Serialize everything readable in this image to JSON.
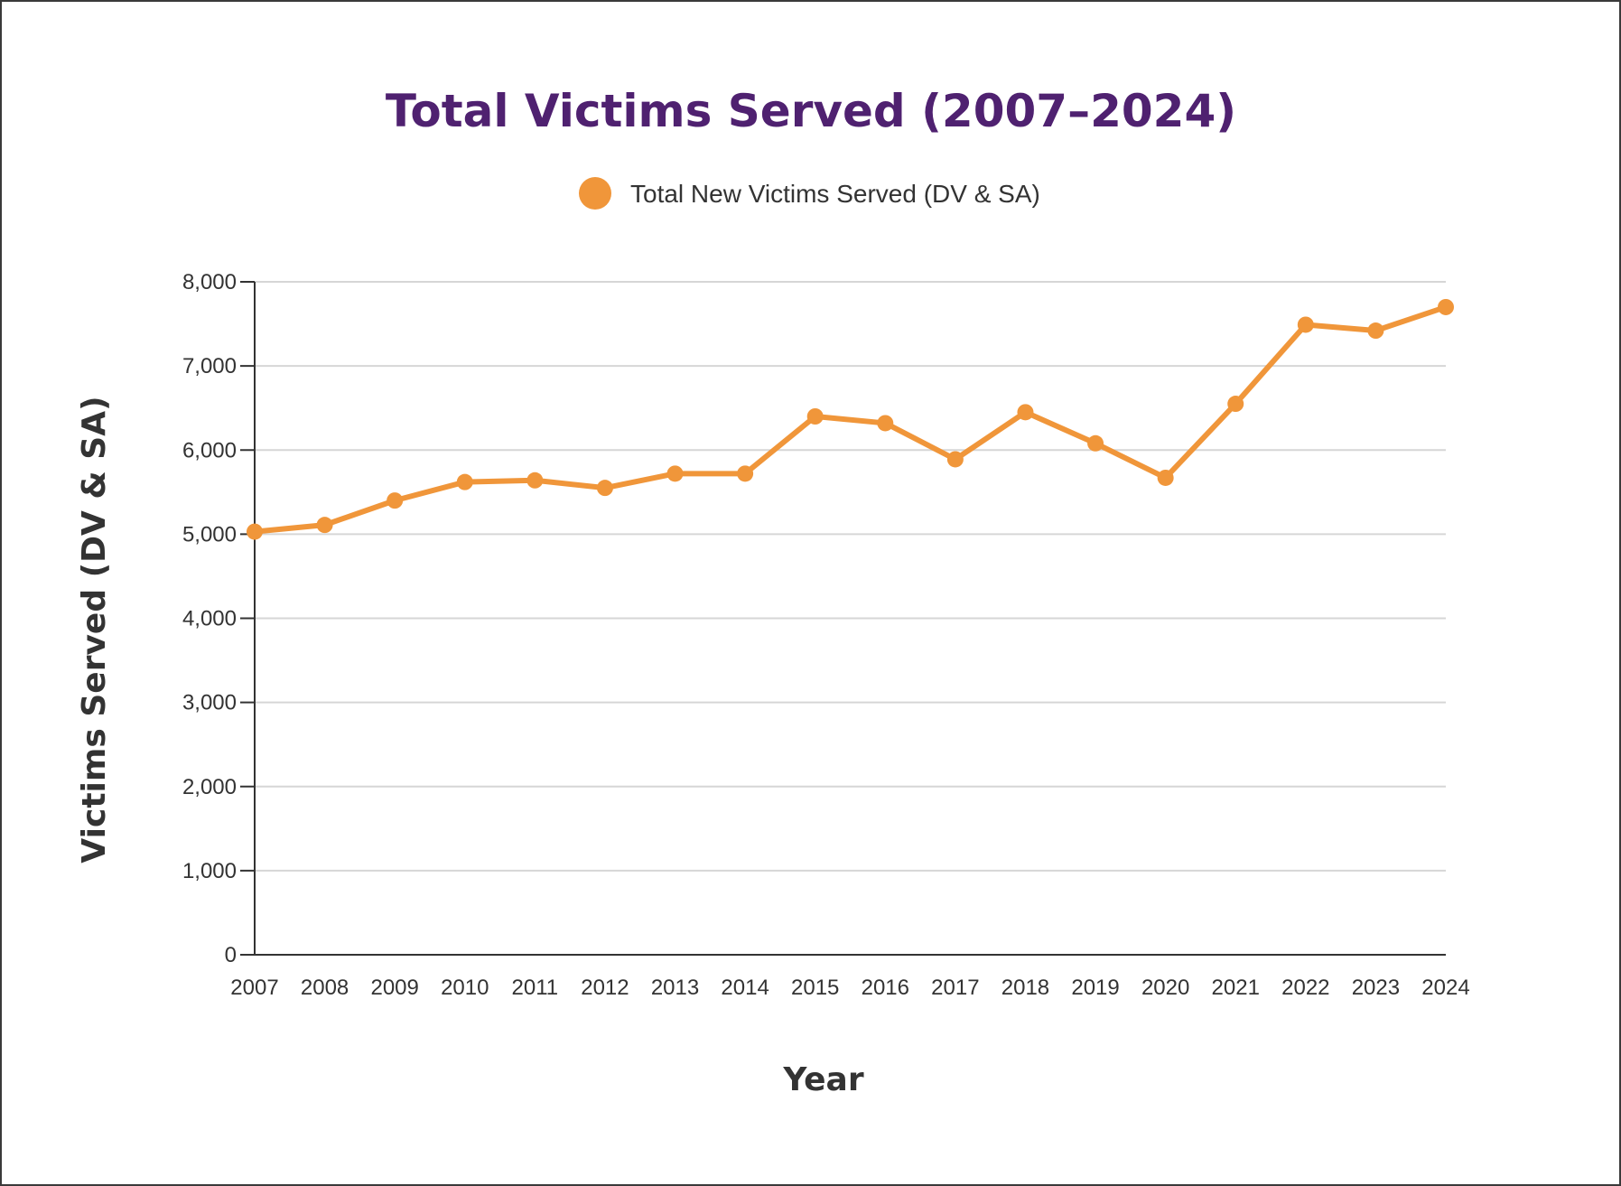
{
  "chart_data": {
    "type": "line",
    "title": "Total Victims Served (2007–2024)",
    "xlabel": "Year",
    "ylabel": "Victims Served (DV & SA)",
    "x": [
      "2007",
      "2008",
      "2009",
      "2010",
      "2011",
      "2012",
      "2013",
      "2014",
      "2015",
      "2016",
      "2017",
      "2018",
      "2019",
      "2020",
      "2021",
      "2022",
      "2023",
      "2024"
    ],
    "series": [
      {
        "name": "Total New Victims Served (DV & SA)",
        "color": "#f0963a",
        "values": [
          5030,
          5110,
          5400,
          5620,
          5640,
          5550,
          5720,
          5720,
          6400,
          6320,
          5890,
          6450,
          6080,
          5670,
          6550,
          7490,
          7420,
          7700
        ]
      }
    ],
    "ylim": [
      0,
      8000
    ],
    "yticks": [
      0,
      1000,
      2000,
      3000,
      4000,
      5000,
      6000,
      7000,
      8000
    ],
    "ytick_labels": [
      "0",
      "1,000",
      "2,000",
      "3,000",
      "4,000",
      "5,000",
      "6,000",
      "7,000",
      "8,000"
    ],
    "grid": true,
    "legend": "top-center"
  }
}
